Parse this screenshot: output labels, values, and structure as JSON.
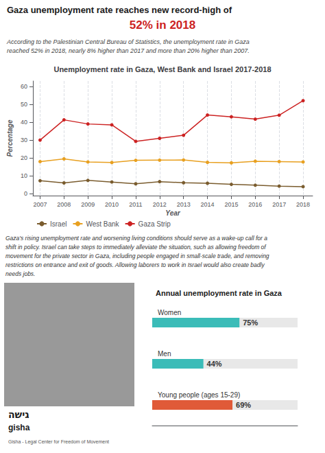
{
  "chart_data": [
    {
      "type": "line",
      "title": "Unemployment rate in Gaza, West Bank and Israel 2017-2018",
      "subtitle": "According to the Palestinian Central Bureau of Statistics, the unemployment rate in Gaza\nreached 52% in 2018, nearly 8% higher than 2017 and more than 20% higher than 2007.",
      "annotations": [
        {
          "text": "Gaza unemployment rate reaches new record-high of"
        },
        {
          "text": "52% in 2018",
          "color": "#cc2222"
        },
        {
          "text": "Gaza's rising unemployment rate and worsening living conditions should serve as a wake-up call for a\nshift in policy. Israel can take steps to immediately alleviate the situation, such as allowing freedom of\nmovement for the private sector in Gaza, including people engaged in small-scale trade, and removing\nrestrictions on entrance and exit of goods. Allowing laborers to work in Israel would also create badly\nneeds jobs."
        }
      ],
      "xlabel": "Year",
      "ylabel": "Percentage",
      "x": [
        2007,
        2008,
        2009,
        2010,
        2011,
        2012,
        2013,
        2014,
        2015,
        2016,
        2017,
        2018
      ],
      "xlim": [
        2006.7,
        2018.4
      ],
      "xticks": [
        2007,
        2008,
        2009,
        2010,
        2011,
        2012,
        2013,
        2014,
        2015,
        2016,
        2017,
        2018
      ],
      "ylim": [
        -1,
        63
      ],
      "yticks": [
        0,
        10,
        20,
        30,
        40,
        50,
        60
      ],
      "grid": "x",
      "legend": "bottom",
      "marker": "circle",
      "series": [
        {
          "name": "Israel",
          "color": "#7a5c2e",
          "values": [
            7.3,
            6.1,
            7.5,
            6.6,
            5.6,
            6.8,
            6.2,
            5.9,
            5.3,
            4.8,
            4.3,
            4.0
          ]
        },
        {
          "name": "West Bank",
          "color": "#e8a020",
          "values": [
            18.0,
            19.5,
            17.8,
            17.5,
            18.7,
            18.8,
            18.9,
            17.6,
            17.3,
            18.2,
            18.0,
            17.8
          ]
        },
        {
          "name": "Gaza Strip",
          "color": "#cc2222",
          "values": [
            30.0,
            41.3,
            39.0,
            38.5,
            29.3,
            31.0,
            32.7,
            44.0,
            43.0,
            41.7,
            43.9,
            52.0
          ]
        }
      ]
    },
    {
      "type": "bar",
      "orientation": "horizontal",
      "title": "Annual unemployment rate in Gaza",
      "categories": [
        "Women",
        "Men",
        "Young people (ages 15-29)"
      ],
      "values": [
        75,
        44,
        69
      ],
      "value_labels": [
        "75%",
        "44%",
        "69%"
      ],
      "colors": [
        "#3bbcb8",
        "#3bbcb8",
        "#e05a38"
      ],
      "data_labels": true,
      "xlim": [
        0,
        125
      ],
      "tick_labels": "y",
      "annotations": [
        {
          "text": "גישה"
        },
        {
          "text": "gisha"
        },
        {
          "text": "Gisha - Legal Center for Freedom of Movement"
        }
      ]
    }
  ]
}
